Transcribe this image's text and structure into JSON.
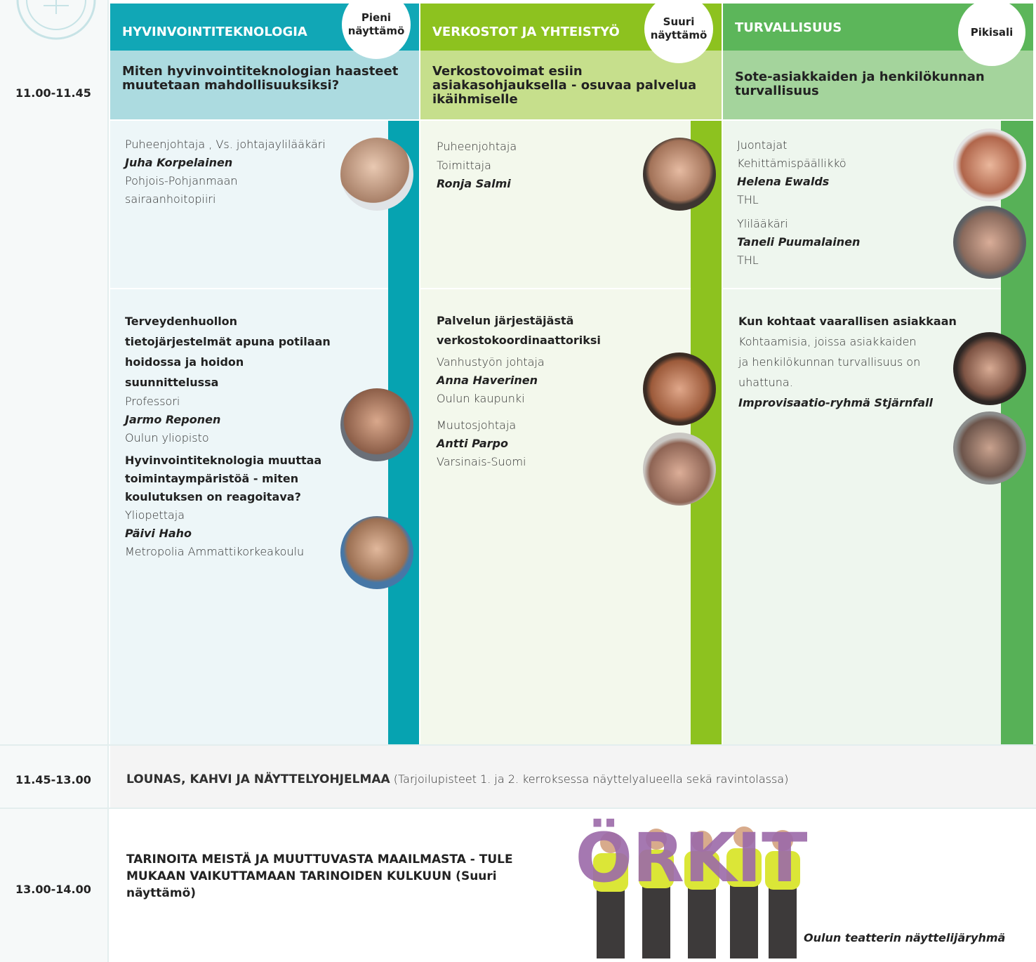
{
  "time_slots": [
    "11.00-11.45",
    "11.45-13.00",
    "13.00-14.00"
  ],
  "tracks": [
    {
      "name": "HYVINVOINTITEKNOLOGIA",
      "stage": [
        "Pieni",
        "näyttämö"
      ],
      "session_title": "Miten hyvinvointiteknologian haasteet muutetaan mahdollisuuksiksi?",
      "chair": {
        "role": "Puheenjohtaja , Vs. johtajaylilääkäri",
        "name": "Juha Korpelainen",
        "org": "Pohjois-Pohjanmaan sairaanhoitopiiri"
      },
      "talks": [
        {
          "title": "Terveydenhuollon tietojärjestelmät apuna potilaan hoidossa ja hoidon suunnittelussa",
          "role": "Professori",
          "name": "Jarmo Reponen",
          "org": "Oulun yliopisto"
        },
        {
          "title": "Hyvinvointiteknologia muuttaa toimintaympäristöä - miten koulutuksen on reagoitava?",
          "role": "Yliopettaja",
          "name": "Päivi Haho",
          "org": "Metropolia Ammattikorkeakoulu"
        }
      ]
    },
    {
      "name": "VERKOSTOT JA YHTEISTYÖ",
      "stage": [
        "Suuri",
        "näyttämö"
      ],
      "session_title": "Verkostovoimat esiin asiakasohjauksella - osuvaa palvelua ikäihmiselle",
      "chair": {
        "label": "Puheenjohtaja",
        "role": "Toimittaja",
        "name": "Ronja Salmi"
      },
      "talk": {
        "title": "Palvelun järjestäjästä verkostokoordinaattoriksi",
        "speakers": [
          {
            "role": "Vanhustyön johtaja",
            "name": "Anna Haverinen",
            "org": "Oulun kaupunki"
          },
          {
            "role": "Muutosjohtaja",
            "name": "Antti Parpo",
            "org": "Varsinais-Suomi"
          }
        ]
      }
    },
    {
      "name": "TURVALLISUUS",
      "stage": [
        "Pikisali"
      ],
      "session_title": "Sote-asiakkaiden ja henkilökunnan turvallisuus",
      "hosts": {
        "label": "Juontajat",
        "speakers": [
          {
            "role": "Kehittämispäällikkö",
            "name": "Helena Ewalds",
            "org": "THL"
          },
          {
            "role": "Ylilääkäri",
            "name": "Taneli Puumalainen",
            "org": "THL"
          }
        ]
      },
      "talk": {
        "title": "Kun kohtaat vaarallisen asiakkaan",
        "description": "Kohtaamisia, joissa asiakkaiden ja henkilökunnan turvallisuus on uhattuna.",
        "performer": "Improvisaatio-ryhmä Stjärnfall"
      }
    }
  ],
  "lunch": {
    "title": "LOUNAS, KAHVI JA NÄYTTELYOHJELMAA",
    "note": "(Tarjoilupisteet 1. ja 2. kerroksessa näyttelyalueella sekä ravintolassa)"
  },
  "finale": {
    "title": "TARINOITA MEISTÄ JA MUUTTUVASTA MAAILMASTA - TULE MUKAAN VAIKUTTAMAAN TARINOIDEN KULKUUN (Suuri näyttämö)",
    "image_text": "ÖRKIT",
    "caption": "Oulun teatterin näyttelijäryhmä"
  }
}
